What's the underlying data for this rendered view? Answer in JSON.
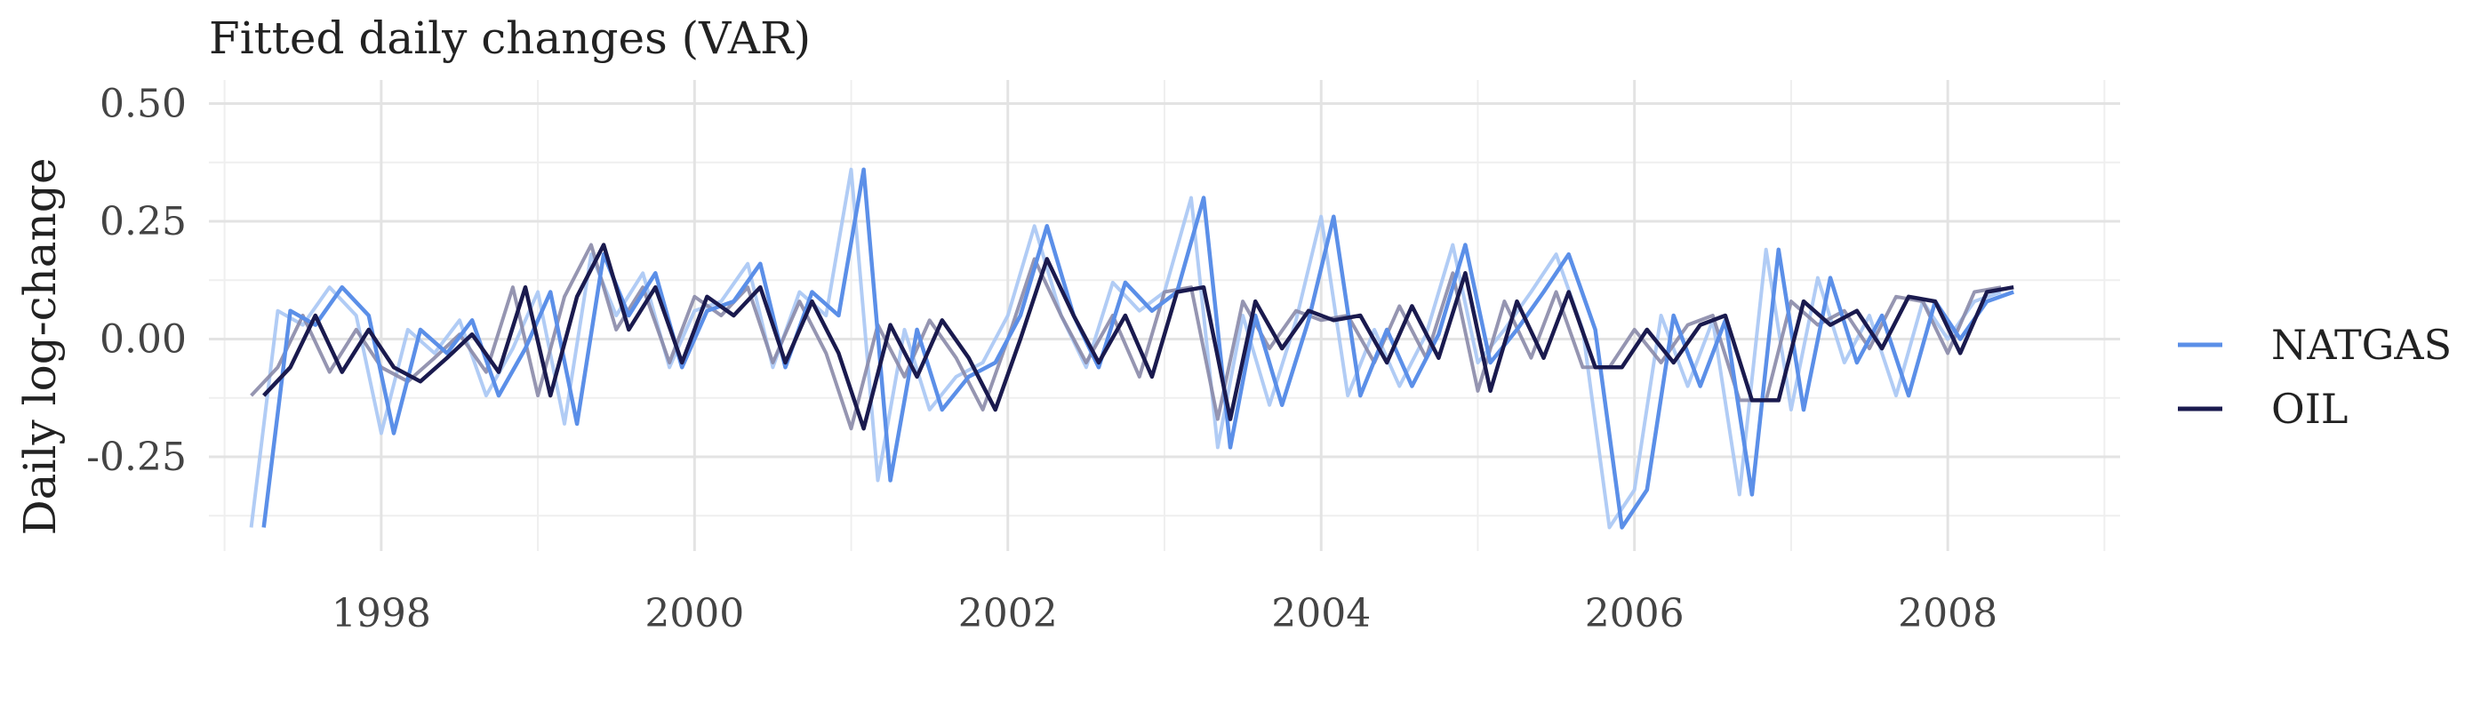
{
  "chart_data": {
    "type": "line",
    "title": "Fitted daily changes (VAR)",
    "xlabel": "",
    "ylabel": "Daily log-change",
    "xlim": [
      1996.9,
      2009.1
    ],
    "ylim": [
      -0.45,
      0.55
    ],
    "x_ticks": [
      1998,
      2000,
      2002,
      2004,
      2006,
      2008
    ],
    "x_tick_labels": [
      "1998",
      "2000",
      "2002",
      "2004",
      "2006",
      "2008"
    ],
    "y_ticks": [
      -0.25,
      0.0,
      0.25,
      0.5
    ],
    "y_tick_labels": [
      "-0.25",
      "0.00",
      "0.25",
      "0.50"
    ],
    "grid": true,
    "legend_position": "right",
    "series": [
      {
        "name": "NATGAS",
        "color": "#5B8FE8",
        "light_color": "#A9C6F4",
        "x": [
          1997.25,
          1997.42,
          1997.58,
          1997.75,
          1997.92,
          1998.08,
          1998.25,
          1998.42,
          1998.58,
          1998.75,
          1998.92,
          1999.08,
          1999.25,
          1999.42,
          1999.58,
          1999.75,
          1999.92,
          2000.08,
          2000.25,
          2000.42,
          2000.58,
          2000.75,
          2000.92,
          2001.08,
          2001.25,
          2001.42,
          2001.58,
          2001.75,
          2001.92,
          2002.08,
          2002.25,
          2002.42,
          2002.58,
          2002.75,
          2002.92,
          2003.08,
          2003.25,
          2003.42,
          2003.58,
          2003.75,
          2003.92,
          2004.08,
          2004.25,
          2004.42,
          2004.58,
          2004.75,
          2004.92,
          2005.08,
          2005.25,
          2005.42,
          2005.58,
          2005.75,
          2005.92,
          2006.08,
          2006.25,
          2006.42,
          2006.58,
          2006.75,
          2006.92,
          2007.08,
          2007.25,
          2007.42,
          2007.58,
          2007.75,
          2007.92,
          2008.08,
          2008.25,
          2008.42
        ],
        "values": [
          -0.4,
          0.06,
          0.03,
          0.11,
          0.05,
          -0.2,
          0.02,
          -0.03,
          0.04,
          -0.12,
          -0.02,
          0.1,
          -0.18,
          0.18,
          0.05,
          0.14,
          -0.06,
          0.06,
          0.08,
          0.16,
          -0.06,
          0.1,
          0.05,
          0.36,
          -0.3,
          0.02,
          -0.15,
          -0.08,
          -0.05,
          0.05,
          0.24,
          0.05,
          -0.06,
          0.12,
          0.06,
          0.1,
          0.3,
          -0.23,
          0.05,
          -0.14,
          0.04,
          0.26,
          -0.12,
          0.02,
          -0.1,
          0.01,
          0.2,
          -0.05,
          0.02,
          0.1,
          0.18,
          0.02,
          -0.4,
          -0.32,
          0.05,
          -0.1,
          0.04,
          -0.33,
          0.19,
          -0.15,
          0.13,
          -0.05,
          0.05,
          -0.12,
          0.08,
          0.0,
          0.08,
          0.1
        ]
      },
      {
        "name": "OIL",
        "color": "#1A1A4E",
        "light_color": "#8A8AA8",
        "x": [
          1997.25,
          1997.42,
          1997.58,
          1997.75,
          1997.92,
          1998.08,
          1998.25,
          1998.42,
          1998.58,
          1998.75,
          1998.92,
          1999.08,
          1999.25,
          1999.42,
          1999.58,
          1999.75,
          1999.92,
          2000.08,
          2000.25,
          2000.42,
          2000.58,
          2000.75,
          2000.92,
          2001.08,
          2001.25,
          2001.42,
          2001.58,
          2001.75,
          2001.92,
          2002.08,
          2002.25,
          2002.42,
          2002.58,
          2002.75,
          2002.92,
          2003.08,
          2003.25,
          2003.42,
          2003.58,
          2003.75,
          2003.92,
          2004.08,
          2004.25,
          2004.42,
          2004.58,
          2004.75,
          2004.92,
          2005.08,
          2005.25,
          2005.42,
          2005.58,
          2005.75,
          2005.92,
          2006.08,
          2006.25,
          2006.42,
          2006.58,
          2006.75,
          2006.92,
          2007.08,
          2007.25,
          2007.42,
          2007.58,
          2007.75,
          2007.92,
          2008.08,
          2008.25,
          2008.42
        ],
        "values": [
          -0.12,
          -0.06,
          0.05,
          -0.07,
          0.02,
          -0.06,
          -0.09,
          -0.04,
          0.01,
          -0.07,
          0.11,
          -0.12,
          0.09,
          0.2,
          0.02,
          0.11,
          -0.05,
          0.09,
          0.05,
          0.11,
          -0.05,
          0.08,
          -0.03,
          -0.19,
          0.03,
          -0.08,
          0.04,
          -0.04,
          -0.15,
          0.0,
          0.17,
          0.05,
          -0.05,
          0.05,
          -0.08,
          0.1,
          0.11,
          -0.17,
          0.08,
          -0.02,
          0.06,
          0.04,
          0.05,
          -0.05,
          0.07,
          -0.04,
          0.14,
          -0.11,
          0.08,
          -0.04,
          0.1,
          -0.06,
          -0.06,
          0.02,
          -0.05,
          0.03,
          0.05,
          -0.13,
          -0.13,
          0.08,
          0.03,
          0.06,
          -0.02,
          0.09,
          0.08,
          -0.03,
          0.1,
          0.11
        ]
      }
    ]
  }
}
